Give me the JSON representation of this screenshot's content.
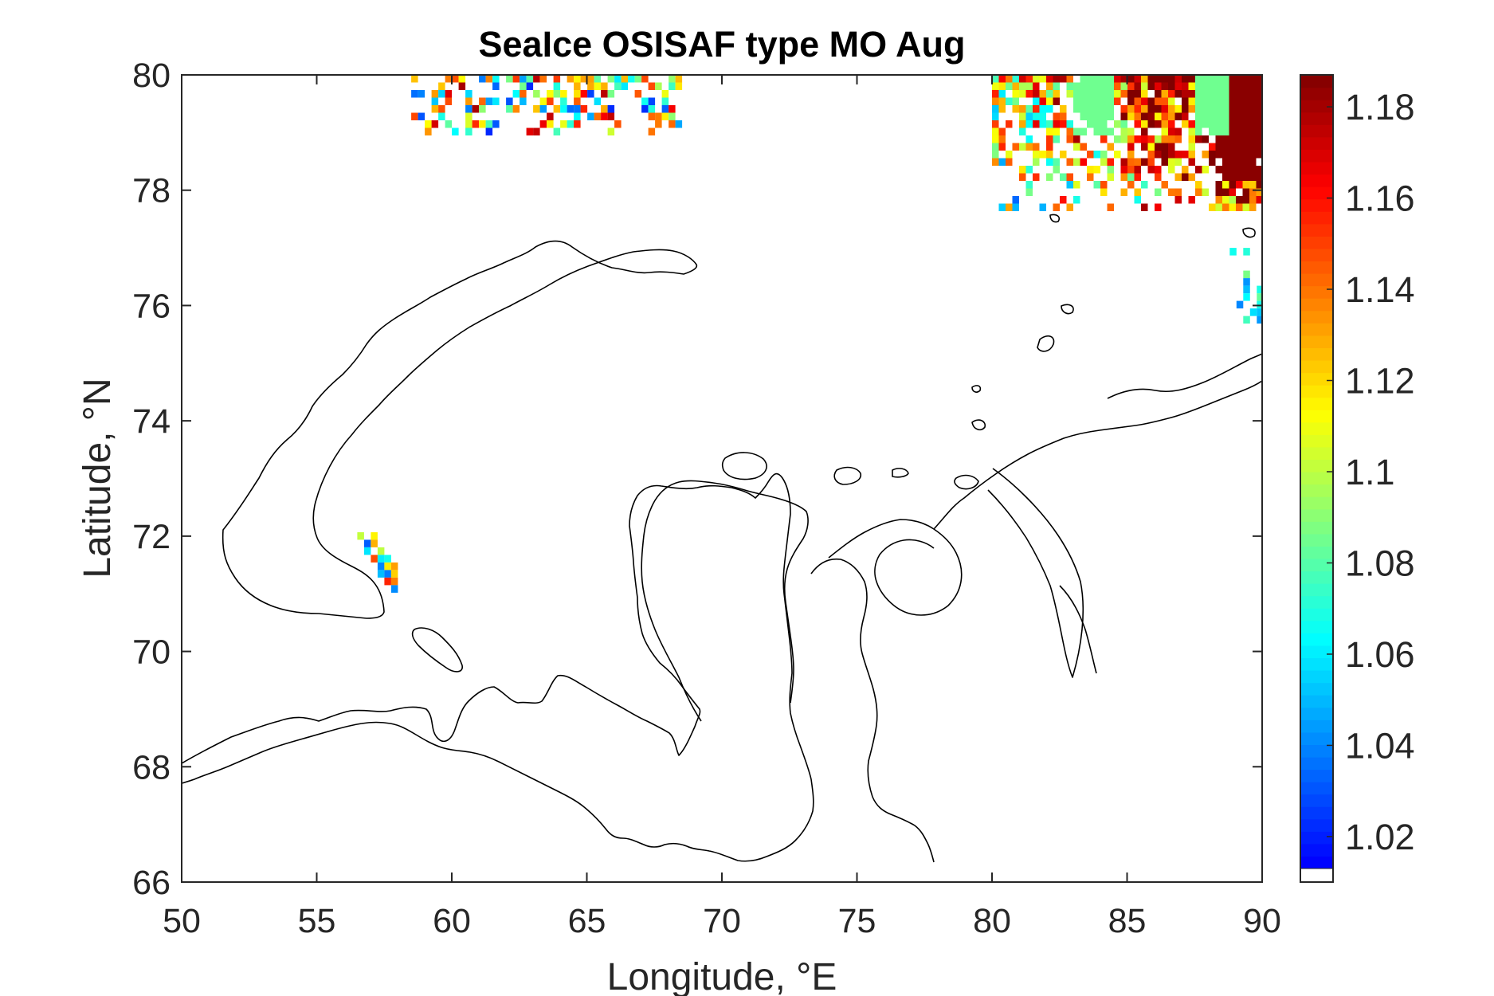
{
  "chart_data": {
    "type": "heatmap",
    "title": "SeaIce OSISAF type MO Aug",
    "xlabel": "Longitude, °E",
    "ylabel": "Latitude, °N",
    "xlim": [
      50,
      90
    ],
    "ylim": [
      66,
      80
    ],
    "x_ticks": [
      "50",
      "55",
      "60",
      "65",
      "70",
      "75",
      "80",
      "85",
      "90"
    ],
    "y_ticks": [
      "66",
      "68",
      "70",
      "72",
      "74",
      "76",
      "78",
      "80"
    ],
    "grid": false,
    "colorbar": {
      "colormap": "jet",
      "range": [
        1.013,
        1.187
      ],
      "ticks": [
        "1.02",
        "1.04",
        "1.06",
        "1.08",
        "1.1",
        "1.12",
        "1.14",
        "1.16",
        "1.18"
      ],
      "below_range_color": "#ffffff"
    },
    "sea_ice_regions": [
      {
        "description": "scattered pixels north of Novaya Zemlya",
        "lon": [
          58.5,
          68.5
        ],
        "lat": [
          79.0,
          80.0
        ],
        "value_range": [
          1.02,
          1.18
        ]
      },
      {
        "description": "dense ice north of Severnaya Zemlya",
        "lon": [
          80.0,
          90.0
        ],
        "lat": [
          77.7,
          80.0
        ],
        "value_range": [
          1.02,
          1.187
        ]
      },
      {
        "description": "narrow ice strip near eastern edge",
        "lon": [
          88.8,
          90.0
        ],
        "lat": [
          75.8,
          77.0
        ],
        "value_range": [
          1.04,
          1.09
        ]
      },
      {
        "description": "small patch west of Novaya Zemlya",
        "lon": [
          56.5,
          58.0
        ],
        "lat": [
          71.1,
          72.2
        ],
        "value_range": [
          1.03,
          1.16
        ]
      }
    ],
    "colors": {
      "land_outline": "#000000",
      "background": "#ffffff"
    }
  }
}
